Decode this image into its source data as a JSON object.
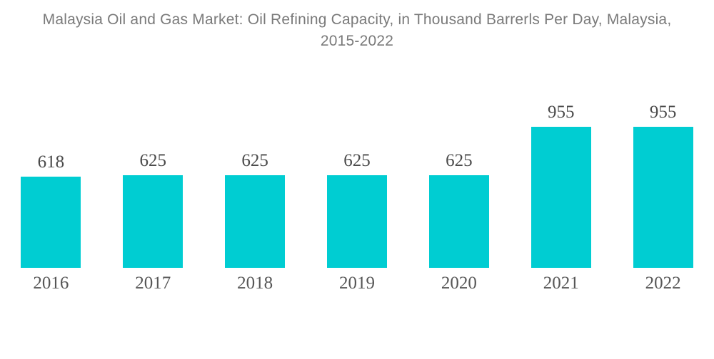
{
  "title": {
    "line1": "Malaysia Oil and Gas Market: Oil Refining Capacity, in Thousand Barrerls Per Day, Malaysia,",
    "line2": "2015-2022"
  },
  "chart_data": {
    "type": "bar",
    "title": "Malaysia Oil and Gas Market: Oil Refining Capacity, in Thousand Barrerls Per Day, Malaysia, 2015-2022",
    "categories": [
      "2016",
      "2017",
      "2018",
      "2019",
      "2020",
      "2021",
      "2022"
    ],
    "values": [
      618,
      625,
      625,
      625,
      625,
      955,
      955
    ],
    "value_labels": [
      "618",
      "625",
      "625",
      "625",
      "625",
      "955",
      "955"
    ],
    "xlabel": "",
    "ylabel": "",
    "ylim": [
      0,
      955
    ],
    "grid": false,
    "legend": "none",
    "bar_color": "#00cdd2",
    "background_color": "#ffffff",
    "title_color": "#7a7a7a",
    "label_color": "#4a4a4a",
    "tick_label_color": "#565656"
  }
}
